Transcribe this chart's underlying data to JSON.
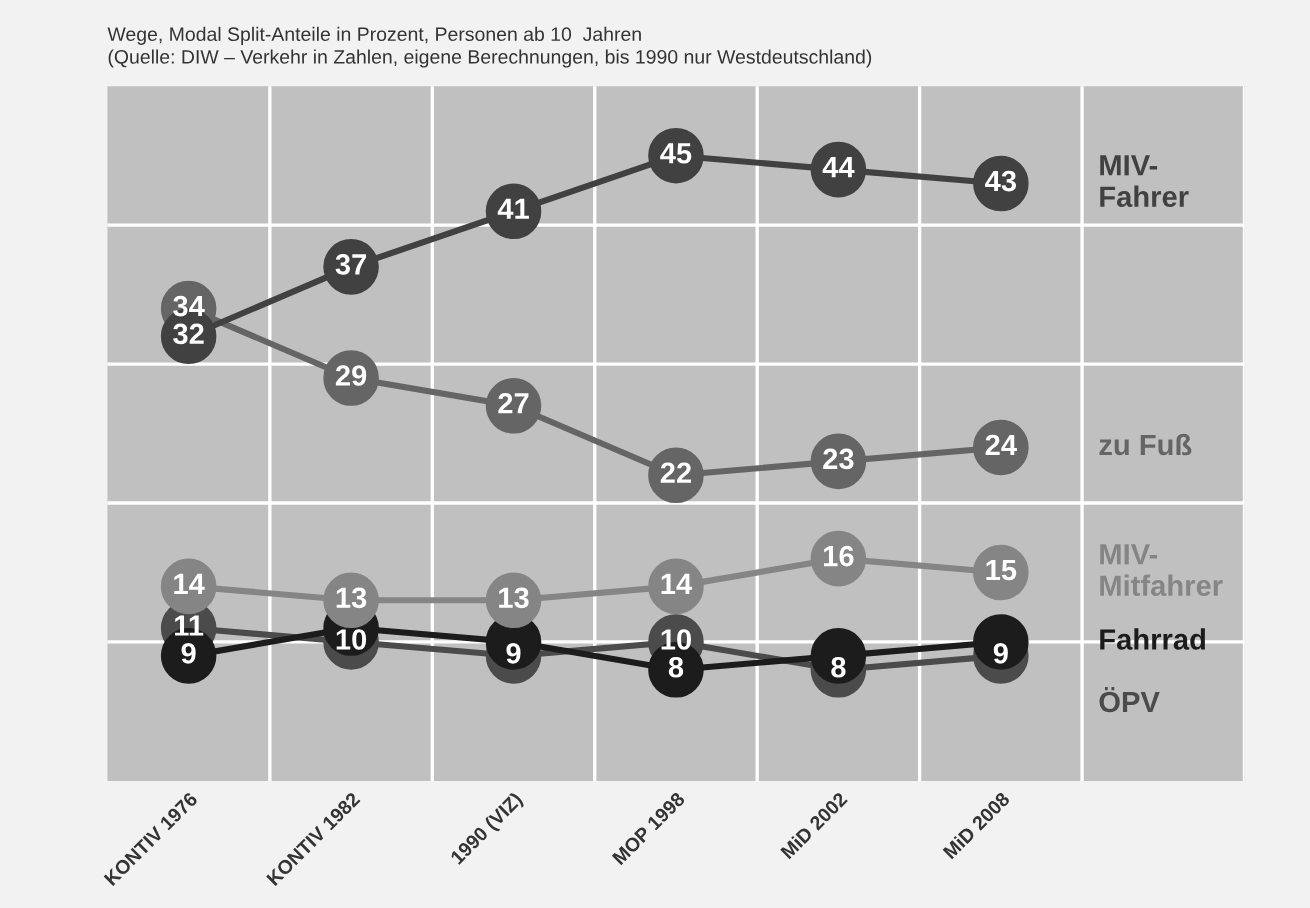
{
  "chart_data": {
    "type": "line",
    "title": "Wege, Modal Split-Anteile in Prozent, Personen ab 10  Jahren",
    "annotations": [
      "(Quelle: DIW – Verkehr in Zahlen, eigene Berechnungen, bis 1990 nur Westdeutschland)"
    ],
    "categories": [
      "KONTIV 1976",
      "KONTIV 1982",
      "1990 (VIZ)",
      "MOP 1998",
      "MiD 2002",
      "MiD 2008"
    ],
    "series": [
      {
        "name": "MIV-\nFahrer",
        "color": "#414141",
        "values": [
          32,
          37,
          41,
          45,
          44,
          43
        ]
      },
      {
        "name": "zu Fuß",
        "color": "#656565",
        "values": [
          34,
          29,
          27,
          22,
          23,
          24
        ]
      },
      {
        "name": "MIV-\nMitfahrer",
        "color": "#858585",
        "values": [
          14,
          13,
          13,
          14,
          16,
          15
        ]
      },
      {
        "name": "Fahrrad",
        "color": "#1c1c1c",
        "values": [
          9,
          11,
          10,
          8,
          9,
          10
        ],
        "value_labels": [
          "9",
          null,
          null,
          "8",
          null,
          null
        ]
      },
      {
        "name": "ÖPV",
        "color": "#4b4b4b",
        "values": [
          11,
          10,
          9,
          10,
          8,
          9
        ],
        "value_labels": [
          "11",
          "10",
          "9",
          "10",
          "8",
          "9"
        ]
      }
    ],
    "data_labels": true,
    "marker": "circle",
    "line_style": "solid",
    "ylim": [
      0,
      50
    ],
    "yticks": [
      {
        "value": 10,
        "label": null
      },
      {
        "value": 20,
        "label": null
      },
      {
        "value": 30,
        "label": null
      },
      {
        "value": 40,
        "label": null
      }
    ],
    "grid": true,
    "legend": false
  }
}
